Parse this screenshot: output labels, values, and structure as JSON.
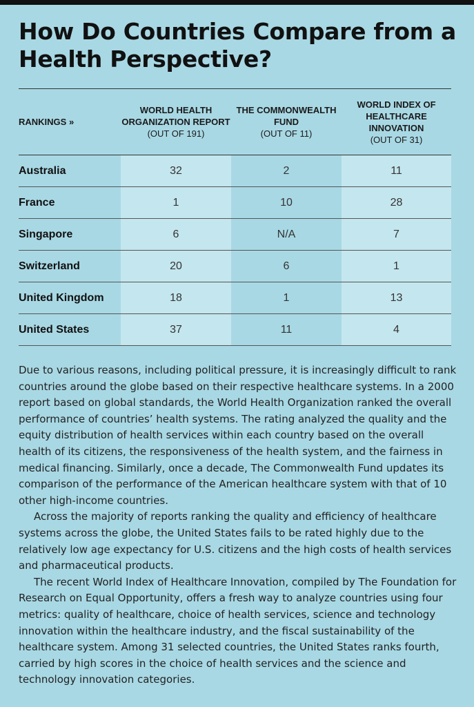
{
  "title": "How Do Countries Compare from a Health Perspective?",
  "table": {
    "rankings_label": "RANKINGS »",
    "columns": [
      {
        "heading": "WORLD HEALTH ORGANIZATION REPORT",
        "sub": "(OUT OF 191)"
      },
      {
        "heading": "THE COMMONWEALTH FUND",
        "sub": "(OUT OF 11)"
      },
      {
        "heading": "WORLD INDEX OF HEALTHCARE INNOVATION",
        "sub": "(OUT OF 31)"
      }
    ],
    "rows": [
      {
        "country": "Australia",
        "values": [
          "32",
          "2",
          "11"
        ]
      },
      {
        "country": "France",
        "values": [
          "1",
          "10",
          "28"
        ]
      },
      {
        "country": "Singapore",
        "values": [
          "6",
          "N/A",
          "7"
        ]
      },
      {
        "country": "Switzerland",
        "values": [
          "20",
          "6",
          "1"
        ]
      },
      {
        "country": "United Kingdom",
        "values": [
          "18",
          "1",
          "13"
        ]
      },
      {
        "country": "United States",
        "values": [
          "37",
          "11",
          "4"
        ]
      }
    ]
  },
  "paragraphs": [
    "Due to various reasons, including political pressure, it is increasingly difficult to rank countries around the globe based on their respective healthcare systems. In a 2000 report based on global standards, the World Health Organization ranked the overall performance of countries’ health systems. The rating analyzed the quality and the equity distribution of health services within each country based on the overall health of its citizens, the responsiveness of the health system, and the fairness in medical financing. Similarly, once a decade, The Commonwealth Fund updates its comparison of the performance of the American healthcare system with that of 10 other high-income countries.",
    "Across the majority of reports ranking the quality and efficiency of healthcare systems across the globe, the United States fails to be rated highly due to the relatively low age expectancy for U.S. citizens and the high costs of health services and pharmaceutical products.",
    "The recent World Index of Healthcare Innovation, compiled by The Foundation for Research on Equal Opportunity, offers a fresh way to analyze countries using four metrics: quality of healthcare, choice of health services, science and technology innovation within the healthcare industry, and the fiscal sustainability of the healthcare system. Among 31 selected countries, the United States ranks fourth, carried by high scores in the choice of health services and the science and technology innovation categories."
  ],
  "colors": {
    "background": "#a8d8e4",
    "shaded_column": "#c4e6ee",
    "top_bar": "#111111"
  }
}
